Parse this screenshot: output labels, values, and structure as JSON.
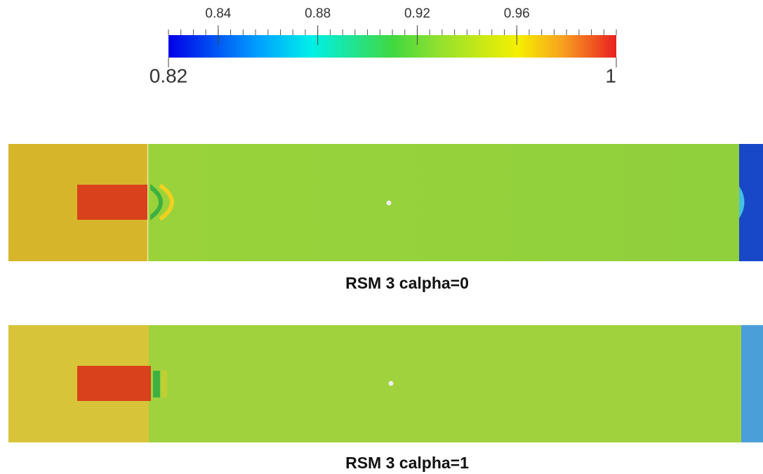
{
  "colorbar": {
    "range": [
      0.82,
      1
    ],
    "ticks": [
      0.84,
      0.88,
      0.92,
      0.96
    ]
  },
  "panels": [
    {
      "caption": "RSM 3 calpha=0"
    },
    {
      "caption": "RSM 3 calpha=1"
    }
  ]
}
